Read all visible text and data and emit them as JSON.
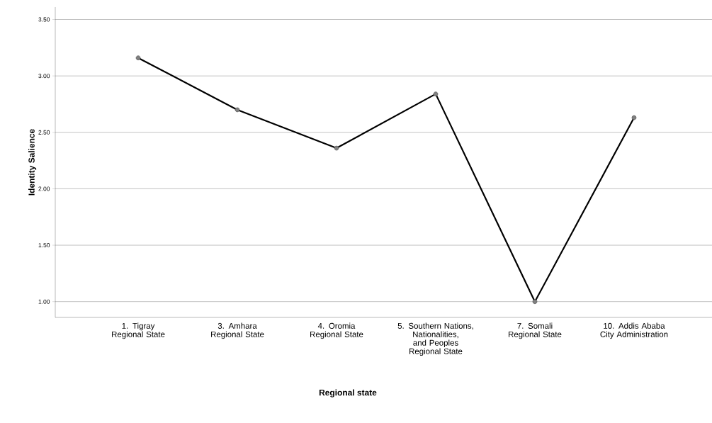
{
  "chart_data": {
    "type": "line",
    "xlabel": "Regional state",
    "ylabel": "Identity Salience",
    "categories": [
      "1. Tigray Regional State",
      "3. Amhara Regional State",
      "4. Oromia Regional State",
      "5. Southern Nations, Nationalities, and Peoples Regional State",
      "7. Somali Regional State",
      "10. Addis Ababa City Administration"
    ],
    "series": [
      {
        "color": "#000000",
        "values": [
          3.16,
          2.7,
          2.36,
          2.84,
          1.0,
          2.63
        ]
      }
    ],
    "ylim": [
      0.86,
      3.61
    ],
    "yticks": [
      {
        "value": 1,
        "label": "1.00"
      },
      {
        "value": 1.5,
        "label": "1.50"
      },
      {
        "value": 2,
        "label": "2.00"
      },
      {
        "value": 2.5,
        "label": "2.50"
      },
      {
        "value": 3,
        "label": "3.00"
      },
      {
        "value": 3.5,
        "label": "3.50"
      }
    ],
    "grid": "y",
    "marker": "circle",
    "line_style": "solid"
  }
}
